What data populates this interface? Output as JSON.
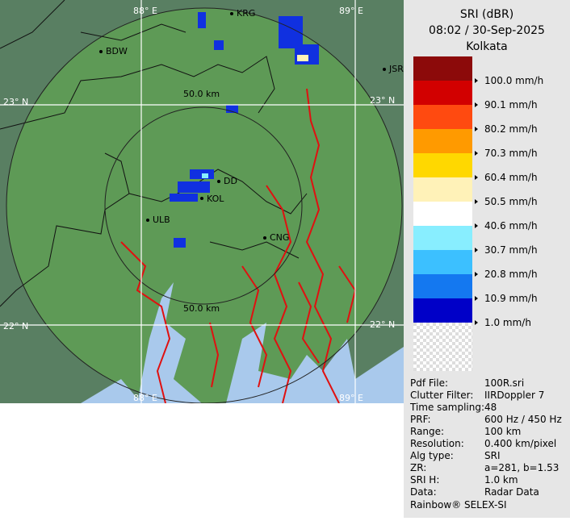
{
  "map": {
    "grid_labels": [
      "88° E",
      "89° E",
      "23° N",
      "22° N"
    ],
    "places": [
      "KRG",
      "BDW",
      "JSR",
      "DD",
      "KOL",
      "ULB",
      "CNG"
    ],
    "range_label": "50.0 km"
  },
  "panel": {
    "title": "SRI (dBR)",
    "time": "08:02 / 30-Sep-2025",
    "station": "Kolkata",
    "legend": [
      {
        "label": "100.0 mm/h",
        "color": "#8c0a0a"
      },
      {
        "label": "90.1 mm/h",
        "color": "#d20000"
      },
      {
        "label": "80.2 mm/h",
        "color": "#ff4a10"
      },
      {
        "label": "70.3 mm/h",
        "color": "#ff9a00"
      },
      {
        "label": "60.4 mm/h",
        "color": "#ffd800"
      },
      {
        "label": "50.5 mm/h",
        "color": "#fff2b8"
      },
      {
        "label": "40.6 mm/h",
        "color": "#ffffff"
      },
      {
        "label": "30.7 mm/h",
        "color": "#88eeff"
      },
      {
        "label": "20.8 mm/h",
        "color": "#3cc0ff"
      },
      {
        "label": "10.9 mm/h",
        "color": "#1478f0"
      },
      {
        "label": "1.0 mm/h",
        "color": "#0000c8"
      }
    ],
    "info": [
      [
        "Pdf File:",
        "100R.sri"
      ],
      [
        "Clutter Filter:",
        "IIRDoppler 7"
      ],
      [
        "Time sampling:",
        "48"
      ],
      [
        "PRF:",
        "600 Hz / 450 Hz"
      ],
      [
        "Range:",
        "100 km"
      ],
      [
        "Resolution:",
        "0.400 km/pixel"
      ],
      [
        "Alg type:",
        "SRI"
      ],
      [
        "ZR:",
        "a=281, b=1.53"
      ],
      [
        "SRI H:",
        "1.0 km"
      ],
      [
        "Data:",
        "Radar Data"
      ]
    ],
    "footer": "Rainbow® SELEX-SI"
  }
}
